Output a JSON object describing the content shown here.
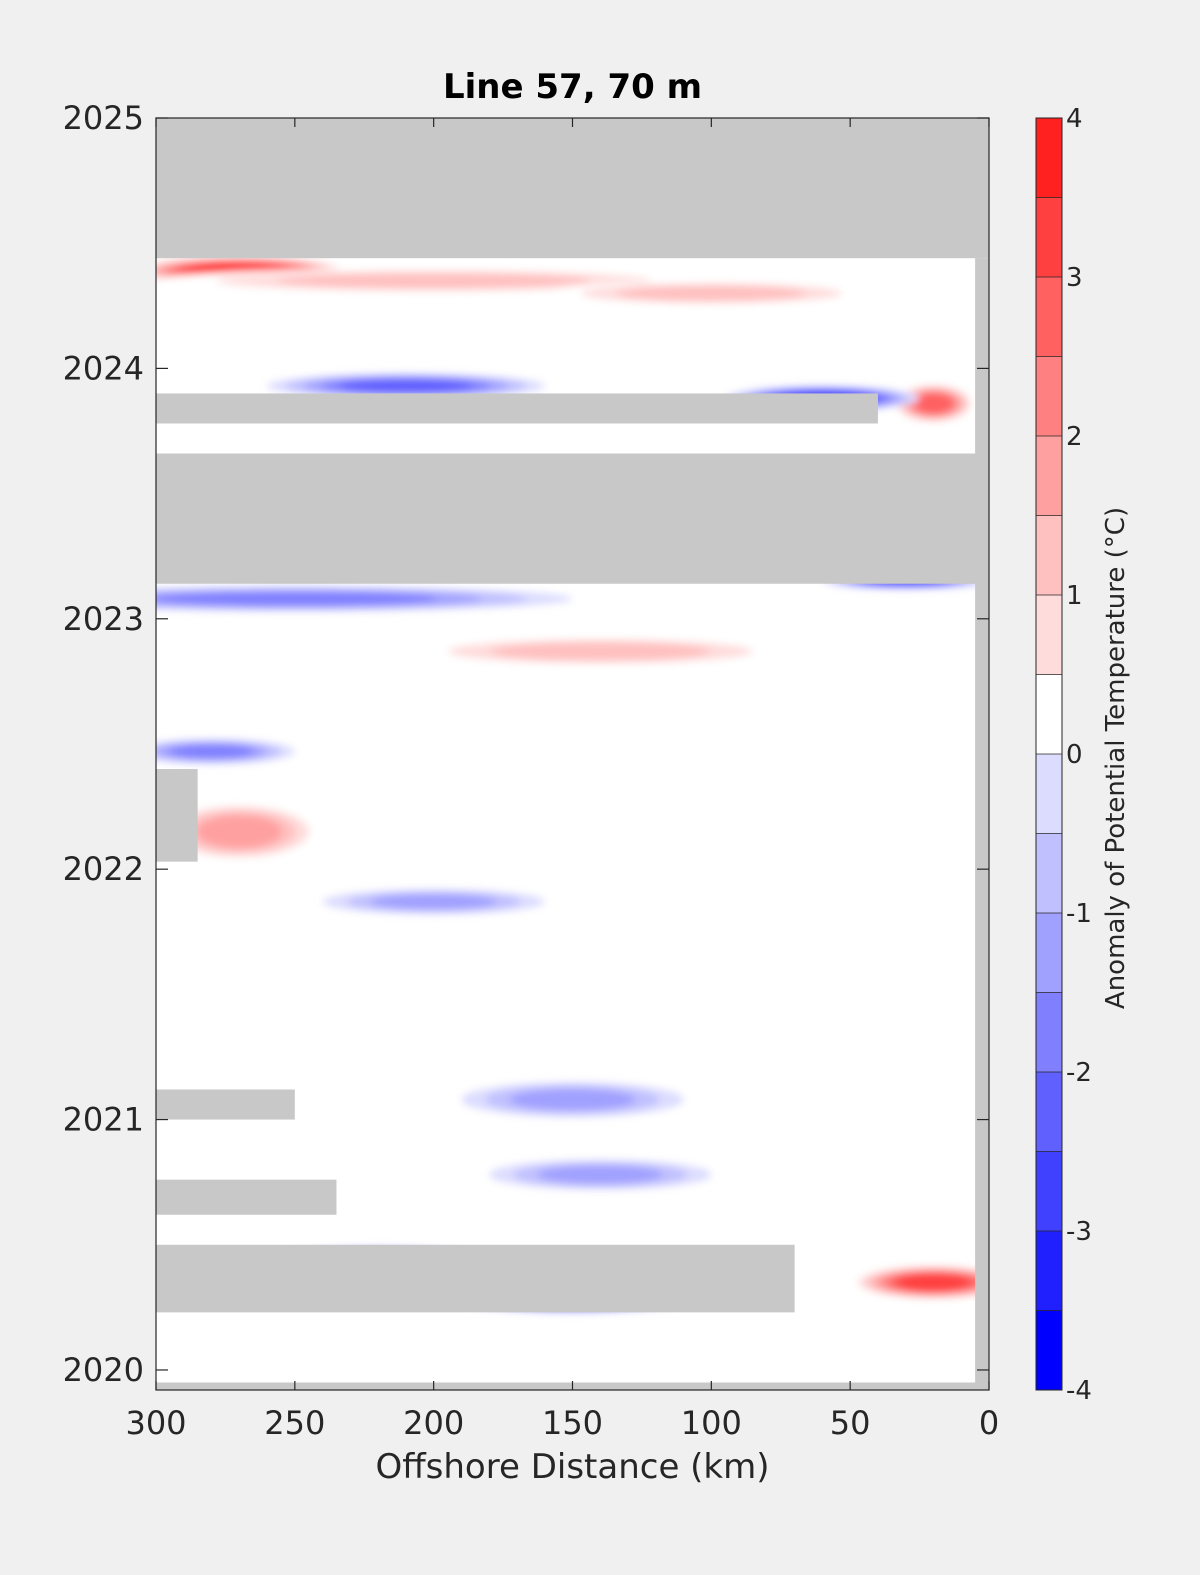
{
  "chart_data": {
    "type": "heatmap",
    "title": "Line 57, 70 m",
    "xlabel": "Offshore Distance (km)",
    "ylabel": "",
    "colorbar_label": "Anomaly of Potential Temperature (°C)",
    "x_range": [
      300,
      0
    ],
    "x_reversed": true,
    "y_range": [
      2019.92,
      2025.0
    ],
    "x_ticks": [
      300,
      250,
      200,
      150,
      100,
      50,
      0
    ],
    "y_ticks": [
      2020,
      2021,
      2022,
      2023,
      2024,
      2025
    ],
    "colorbar_range": [
      -4,
      4
    ],
    "colorbar_ticks": [
      -4,
      -3,
      -2,
      -1,
      0,
      1,
      2,
      3,
      4
    ],
    "colorbar_levels": [
      -4,
      -3.5,
      -3,
      -2.5,
      -2,
      -1.5,
      -1,
      -0.5,
      0,
      0.5,
      1,
      1.5,
      2,
      2.5,
      3,
      3.5,
      4
    ],
    "colorbar_colors": [
      "#0000ff",
      "#2020ff",
      "#4040ff",
      "#6060ff",
      "#8080ff",
      "#a0a0ff",
      "#c0c0ff",
      "#dcdcff",
      "#ffffff",
      "#ffdcdc",
      "#ffc0c0",
      "#ffa0a0",
      "#ff8080",
      "#ff6060",
      "#ff4040",
      "#ff2020",
      "#ff0000"
    ],
    "missing_color": "#c8c8c8",
    "grid": false,
    "missing_bands": [
      {
        "x": [
          300,
          0
        ],
        "y": [
          2024.44,
          2025.0
        ]
      },
      {
        "x": [
          300,
          40
        ],
        "y": [
          2023.78,
          2023.9
        ]
      },
      {
        "x": [
          300,
          0
        ],
        "y": [
          2023.14,
          2023.66
        ]
      },
      {
        "x": [
          300,
          285
        ],
        "y": [
          2022.03,
          2022.4
        ]
      },
      {
        "x": [
          300,
          250
        ],
        "y": [
          2021.0,
          2021.12
        ]
      },
      {
        "x": [
          300,
          235
        ],
        "y": [
          2020.62,
          2020.76
        ]
      },
      {
        "x": [
          300,
          70
        ],
        "y": [
          2020.23,
          2020.5
        ]
      },
      {
        "x": [
          300,
          0
        ],
        "y": [
          2019.92,
          2019.95
        ]
      },
      {
        "x": [
          5,
          0
        ],
        "y": [
          2019.92,
          2024.44
        ]
      }
    ],
    "anomaly_blobs": [
      {
        "x": 270,
        "y": 2024.39,
        "rx": 40,
        "ry": 0.06,
        "v": 3.8
      },
      {
        "x": 200,
        "y": 2024.35,
        "rx": 100,
        "ry": 0.05,
        "v": 1.2
      },
      {
        "x": 100,
        "y": 2024.3,
        "rx": 60,
        "ry": 0.05,
        "v": 1.4
      },
      {
        "x": 20,
        "y": 2023.86,
        "rx": 15,
        "ry": 0.08,
        "v": 2.8
      },
      {
        "x": 60,
        "y": 2023.88,
        "rx": 35,
        "ry": 0.05,
        "v": -3.5
      },
      {
        "x": 210,
        "y": 2023.93,
        "rx": 50,
        "ry": 0.05,
        "v": -2.3
      },
      {
        "x": 250,
        "y": 2023.08,
        "rx": 100,
        "ry": 0.05,
        "v": -1.8
      },
      {
        "x": 30,
        "y": 2023.15,
        "rx": 30,
        "ry": 0.03,
        "v": -3
      },
      {
        "x": 140,
        "y": 2022.87,
        "rx": 70,
        "ry": 0.06,
        "v": 1.5
      },
      {
        "x": 280,
        "y": 2022.47,
        "rx": 30,
        "ry": 0.05,
        "v": -2
      },
      {
        "x": 270,
        "y": 2022.15,
        "rx": 30,
        "ry": 0.12,
        "v": 1.8
      },
      {
        "x": 200,
        "y": 2021.87,
        "rx": 40,
        "ry": 0.05,
        "v": -1.5
      },
      {
        "x": 150,
        "y": 2021.08,
        "rx": 40,
        "ry": 0.07,
        "v": -1.5
      },
      {
        "x": 140,
        "y": 2020.78,
        "rx": 40,
        "ry": 0.06,
        "v": -1.5
      },
      {
        "x": 20,
        "y": 2020.35,
        "rx": 30,
        "ry": 0.07,
        "v": 3.5
      },
      {
        "x": 150,
        "y": 2020.28,
        "rx": 40,
        "ry": 0.05,
        "v": -3.2
      },
      {
        "x": 220,
        "y": 2020.45,
        "rx": 35,
        "ry": 0.04,
        "v": -2.4
      }
    ]
  }
}
